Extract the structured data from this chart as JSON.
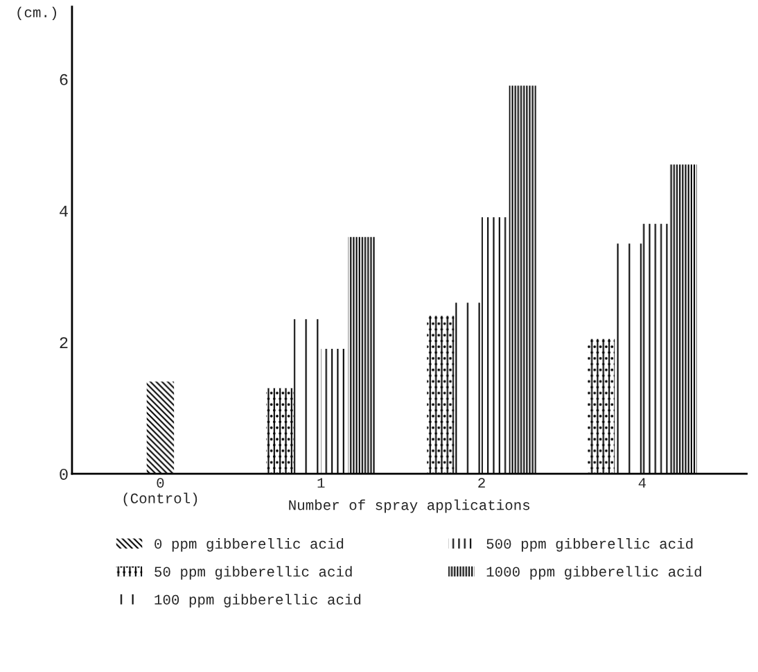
{
  "chart_data": {
    "type": "bar",
    "xlabel": "Number of spray applications",
    "ylabel": "(cm.)",
    "categories": [
      "0\n(Control)",
      "1",
      "2",
      "4"
    ],
    "series": [
      {
        "name": "0 ppm gibberellic acid",
        "color": "#000000",
        "values": [
          1.4,
          null,
          null,
          null
        ]
      },
      {
        "name": "50 ppm gibberellic acid",
        "color": "#000000",
        "values": [
          null,
          1.3,
          2.4,
          2.05
        ]
      },
      {
        "name": "100 ppm gibberellic acid",
        "color": "#000000",
        "values": [
          null,
          2.35,
          2.6,
          3.5
        ]
      },
      {
        "name": "500 ppm gibberellic acid",
        "color": "#000000",
        "values": [
          null,
          1.9,
          3.9,
          3.8
        ]
      },
      {
        "name": "1000 ppm gibberellic acid",
        "color": "#000000",
        "values": [
          null,
          3.6,
          5.9,
          4.7
        ]
      }
    ],
    "ylim": [
      0,
      7.1
    ],
    "yticks": [
      0,
      2,
      4,
      6
    ],
    "grid": false,
    "legend": "bottom"
  }
}
